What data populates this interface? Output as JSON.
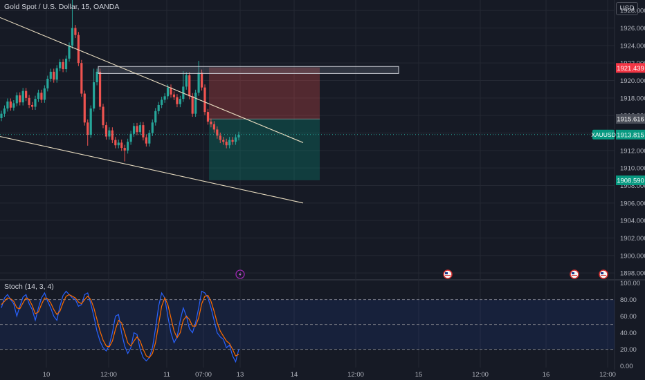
{
  "header": {
    "title": "Gold Spot / U.S. Dollar, 15, OANDA",
    "currency_button": "USD"
  },
  "indicator": {
    "title": "Stoch (14, 3, 4)"
  },
  "colors": {
    "background": "#161a25",
    "grid": "#242833",
    "up_candle": "#26a69a",
    "down_candle": "#ef5350",
    "trendline": "#e8dcc0",
    "stoch_k": "#2962ff",
    "stoch_d": "#ff6d00",
    "stop_zone": "#ef5350",
    "target_zone": "#089981"
  },
  "chart_data": [
    {
      "type": "candlestick",
      "ylim": [
        1897.3,
        1929.2
      ],
      "yticks": [
        "1928.000",
        "1926.000",
        "1924.000",
        "1922.000",
        "1920.000",
        "1918.000",
        "1916.000",
        "1914.000",
        "1912.000",
        "1910.000",
        "1908.000",
        "1906.000",
        "1904.000",
        "1902.000",
        "1900.000",
        "1898.000"
      ],
      "xticks": [
        "10",
        "12:00",
        "11",
        "07:00",
        "13",
        "14",
        "12:00",
        "15",
        "12:00",
        "16",
        "12:00"
      ],
      "price_labels": [
        {
          "label": "1921.439",
          "value": 1921.44,
          "color": "#f23645"
        },
        {
          "label": "1915.616",
          "value": 1915.62,
          "color": "#4a4e58"
        },
        {
          "tag": "XAUUSD",
          "label": "1913.815",
          "value": 1913.82,
          "color": "#089981"
        },
        {
          "label": "1908.590",
          "value": 1908.59,
          "color": "#089981"
        }
      ],
      "close_series": [
        1916.2,
        1916.8,
        1917.6,
        1916.9,
        1917.4,
        1918.3,
        1917.5,
        1918.8,
        1918.0,
        1917.2,
        1917.0,
        1917.9,
        1918.6,
        1917.8,
        1919.1,
        1920.2,
        1921.0,
        1920.1,
        1921.4,
        1922.1,
        1921.3,
        1922.5,
        1924.0,
        1926.0,
        1925.2,
        1922.0,
        1918.5,
        1915.2,
        1913.8,
        1916.8,
        1919.8,
        1921.0,
        1917.0,
        1914.9,
        1913.6,
        1914.3,
        1913.2,
        1912.6,
        1912.9,
        1912.3,
        1912.0,
        1913.0,
        1913.9,
        1914.8,
        1914.1,
        1914.9,
        1913.5,
        1912.8,
        1914.0,
        1915.2,
        1916.5,
        1917.2,
        1917.8,
        1918.2,
        1919.2,
        1918.4,
        1918.1,
        1917.3,
        1917.9,
        1919.3,
        1920.6,
        1918.2,
        1916.2,
        1918.6,
        1920.9,
        1919.2,
        1916.4,
        1915.3,
        1915.0,
        1914.4,
        1913.7,
        1913.2,
        1913.0,
        1912.6,
        1913.2,
        1913.0,
        1913.5,
        1913.8
      ],
      "shapes": {
        "resistance_box": {
          "low": 1920.8,
          "high": 1921.6
        },
        "upper_trendline": {
          "from": 1927.2,
          "to": 1912.9
        },
        "lower_trendline": {
          "from": 1913.6,
          "to": 1906.0
        },
        "stop_zone": {
          "low": 1915.6,
          "high": 1921.5
        },
        "target_zone": {
          "low": 1908.6,
          "high": 1915.6
        }
      },
      "event_markers": [
        "lightning-icon",
        "us-flag-icon",
        "us-flag-icon",
        "us-flag-icon"
      ]
    },
    {
      "type": "line",
      "title": "Stoch (14, 3, 4)",
      "ylim": [
        -2,
        103
      ],
      "yticks": [
        "100.00",
        "80.00",
        "60.00",
        "40.00",
        "20.00",
        "0.00"
      ],
      "bands": {
        "upper": 80,
        "middle": 50,
        "lower": 20
      },
      "series": [
        {
          "values": [
            70,
            82,
            86,
            80,
            75,
            60,
            72,
            83,
            86,
            75,
            68,
            55,
            70,
            82,
            88,
            78,
            70,
            60,
            55,
            72,
            85,
            90,
            86,
            82,
            80,
            72,
            74,
            86,
            88,
            75,
            60,
            42,
            30,
            22,
            18,
            25,
            40,
            60,
            62,
            40,
            24,
            15,
            22,
            40,
            38,
            20,
            10,
            6,
            10,
            22,
            45,
            72,
            88,
            82,
            60,
            40,
            28,
            35,
            55,
            70,
            60,
            45,
            40,
            52,
            70,
            90,
            88,
            82,
            70,
            55,
            40,
            35,
            32,
            22,
            25,
            12,
            5,
            20
          ]
        },
        {
          "values": [
            74,
            78,
            82,
            81,
            78,
            70,
            69,
            76,
            82,
            80,
            73,
            63,
            65,
            74,
            82,
            81,
            76,
            68,
            62,
            66,
            76,
            84,
            86,
            84,
            82,
            77,
            75,
            80,
            84,
            80,
            70,
            56,
            42,
            31,
            24,
            23,
            30,
            44,
            55,
            52,
            40,
            28,
            24,
            30,
            35,
            30,
            20,
            12,
            10,
            15,
            28,
            50,
            72,
            82,
            74,
            58,
            42,
            34,
            40,
            55,
            60,
            56,
            48,
            48,
            58,
            75,
            84,
            85,
            78,
            66,
            52,
            42,
            36,
            30,
            27,
            20,
            12,
            14
          ]
        }
      ]
    }
  ]
}
